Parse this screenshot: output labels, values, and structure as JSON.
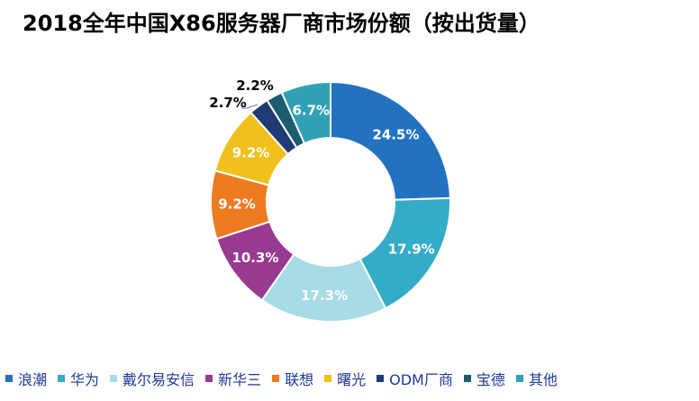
{
  "title": "2018全年中国X86服务器厂商市场份额（按出货量）",
  "chart_data": {
    "type": "pie",
    "donut": true,
    "title": "2018全年中国X86服务器厂商市场份额（按出货量）",
    "legend_position": "bottom",
    "unit": "%",
    "slices": [
      {
        "name": "浪潮",
        "value": 24.5,
        "label": "24.5%",
        "color": "#2272c0"
      },
      {
        "name": "华为",
        "value": 17.9,
        "label": "17.9%",
        "color": "#34acc8"
      },
      {
        "name": "戴尔易安信",
        "value": 17.3,
        "label": "17.3%",
        "color": "#a7dbe5"
      },
      {
        "name": "新华三",
        "value": 10.3,
        "label": "10.3%",
        "color": "#983a91"
      },
      {
        "name": "联想",
        "value": 9.2,
        "label": "9.2%",
        "color": "#ee7b21"
      },
      {
        "name": "曙光",
        "value": 9.2,
        "label": "9.2%",
        "color": "#f2c01c"
      },
      {
        "name": "ODM厂商",
        "value": 2.7,
        "label": "2.7%",
        "color": "#1e3b73"
      },
      {
        "name": "宝德",
        "value": 2.2,
        "label": "2.2%",
        "color": "#1c5c6e"
      },
      {
        "name": "其他",
        "value": 6.7,
        "label": "6.7%",
        "color": "#30a1b5"
      }
    ]
  }
}
